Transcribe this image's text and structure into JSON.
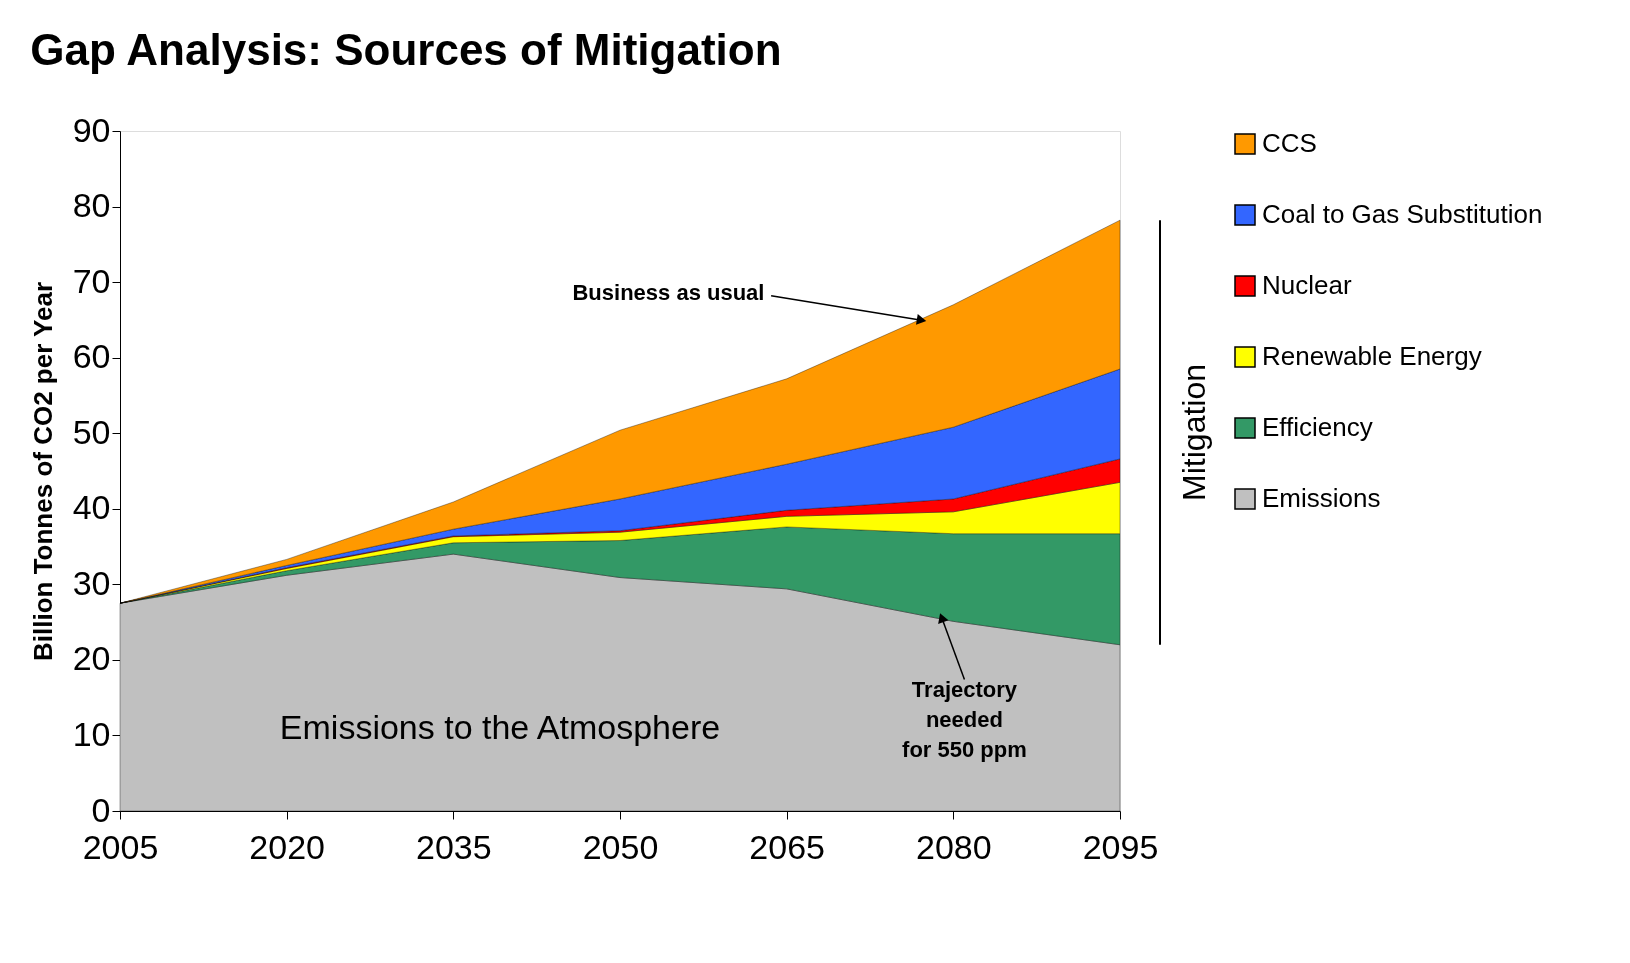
{
  "chart_data": {
    "type": "area",
    "stacked": true,
    "title": "Gap Analysis: Sources of Mitigation",
    "ylabel": "Billion Tonnes of CO2 per Year",
    "x": [
      2005,
      2020,
      2035,
      2050,
      2065,
      2080,
      2095
    ],
    "xlim": [
      2005,
      2095
    ],
    "xticks": [
      2005,
      2020,
      2035,
      2050,
      2065,
      2080,
      2095
    ],
    "ylim": [
      0,
      90
    ],
    "yticks": [
      0,
      10,
      20,
      30,
      40,
      50,
      60,
      70,
      80,
      90
    ],
    "series": [
      {
        "name": "Emissions",
        "color": "#c0c0c0",
        "values": [
          27.5,
          31.2,
          34.0,
          30.9,
          29.4,
          25.1,
          22.0
        ]
      },
      {
        "name": "Efficiency",
        "color": "#339966",
        "values": [
          0,
          0.6,
          1.5,
          4.9,
          8.2,
          11.6,
          14.7
        ]
      },
      {
        "name": "Renewable Energy",
        "color": "#ffff00",
        "values": [
          0,
          0.3,
          0.8,
          1.1,
          1.4,
          2.9,
          6.8
        ]
      },
      {
        "name": "Nuclear",
        "color": "#ff0000",
        "values": [
          0,
          0.1,
          0.1,
          0.2,
          0.8,
          1.7,
          3.1
        ]
      },
      {
        "name": "Coal to Gas Substitution",
        "color": "#3366ff",
        "values": [
          0,
          0.3,
          0.9,
          4.2,
          6.1,
          9.5,
          11.9
        ]
      },
      {
        "name": "CCS",
        "color": "#ff9900",
        "values": [
          0,
          0.8,
          3.6,
          9.1,
          11.3,
          16.2,
          19.7
        ]
      }
    ],
    "legend": "right",
    "grid": false,
    "annotations": [
      "Emissions to the Atmosphere",
      {
        "text": "Business as usual",
        "x": 2077,
        "y": 65.0
      },
      {
        "text": "Trajectory needed for 550 ppm",
        "x": 2079,
        "y": 25.4
      },
      "Mitigation"
    ]
  }
}
